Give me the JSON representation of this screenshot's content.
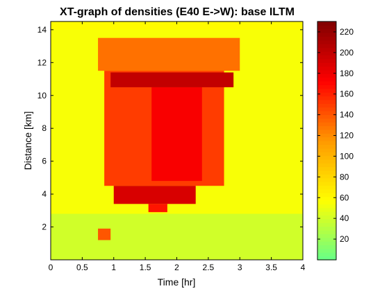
{
  "chart_data": {
    "type": "heatmap",
    "title": "XT-graph of densities (E40 E->W): base ILTM",
    "xlabel": "Time [hr]",
    "ylabel": "Distance [km]",
    "xlim": [
      0,
      4
    ],
    "ylim": [
      0,
      14.5
    ],
    "x_ticks": [
      "0",
      "0.5",
      "1",
      "1.5",
      "2",
      "2.5",
      "3",
      "3.5",
      "4"
    ],
    "y_ticks": [
      "2",
      "4",
      "6",
      "8",
      "10",
      "12",
      "14"
    ],
    "colorbar": {
      "range": [
        0,
        230
      ],
      "ticks": [
        "20",
        "40",
        "60",
        "80",
        "100",
        "120",
        "140",
        "160",
        "180",
        "200",
        "220"
      ],
      "colormap": [
        "#66ff88",
        "#ffff00",
        "#ff9900",
        "#ff0000",
        "#800000"
      ]
    },
    "grid": false,
    "background_density": 45,
    "regions": [
      {
        "name": "low segment 0-2.8 km",
        "x": [
          0,
          4
        ],
        "y": [
          0,
          2.8
        ],
        "density": 40
      },
      {
        "name": "upstream low rows",
        "x": [
          0,
          4
        ],
        "y": [
          2.8,
          14.5
        ],
        "density": 55
      },
      {
        "name": "top boundary row",
        "x": [
          0,
          4
        ],
        "y": [
          14.0,
          14.5
        ],
        "density": 60
      },
      {
        "name": "top congestion band",
        "x": [
          0.75,
          3.0
        ],
        "y": [
          11.5,
          13.5
        ],
        "density": 130
      },
      {
        "name": "main congestion body",
        "x": [
          0.85,
          2.75
        ],
        "y": [
          4.5,
          11.5
        ],
        "density": 150
      },
      {
        "name": "core jam",
        "x": [
          1.6,
          2.4
        ],
        "y": [
          4.8,
          10.5
        ],
        "density": 175
      },
      {
        "name": "high density ridge",
        "x": [
          0.95,
          2.9
        ],
        "y": [
          10.5,
          11.4
        ],
        "density": 200
      },
      {
        "name": "lower jam",
        "x": [
          1.0,
          2.3
        ],
        "y": [
          3.4,
          4.5
        ],
        "density": 190
      },
      {
        "name": "jam tail",
        "x": [
          1.55,
          1.85
        ],
        "y": [
          2.9,
          3.4
        ],
        "density": 165
      },
      {
        "name": "isolated spot",
        "x": [
          0.75,
          0.95
        ],
        "y": [
          1.2,
          1.9
        ],
        "density": 140
      }
    ]
  }
}
